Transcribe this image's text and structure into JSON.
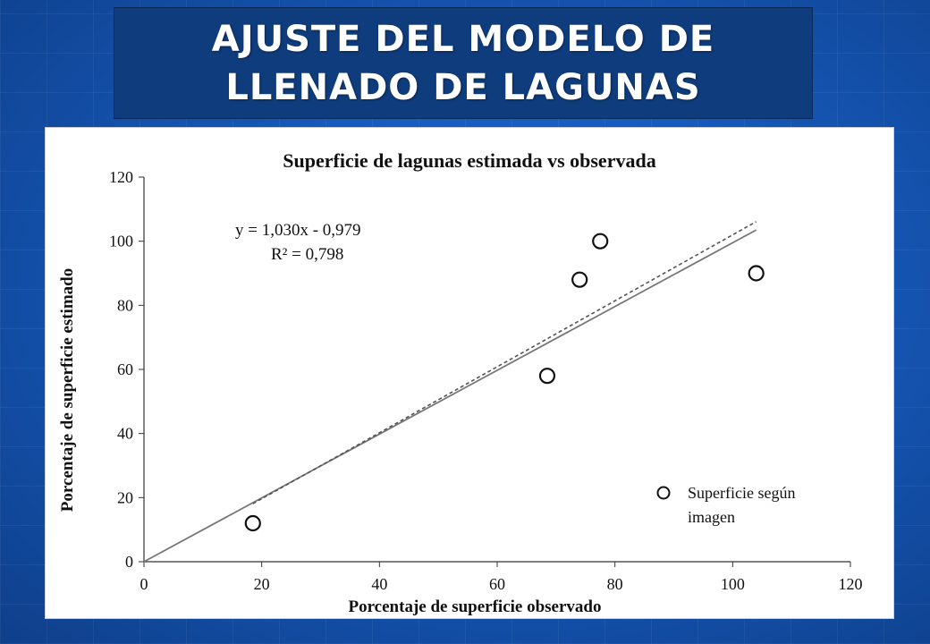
{
  "slide": {
    "title_line1": "AJUSTE DEL MODELO DE",
    "title_line2": "LLENADO DE LAGUNAS"
  },
  "chart_data": {
    "type": "scatter",
    "title": "Superficie de lagunas estimada vs observada",
    "xlabel": "Porcentaje de superficie observado",
    "ylabel": "Porcentaje de superficie estimado",
    "xlim": [
      0,
      120
    ],
    "ylim": [
      0,
      120
    ],
    "xticks": [
      "0",
      "20",
      "40",
      "60",
      "80",
      "100",
      "120"
    ],
    "yticks": [
      "0",
      "20",
      "40",
      "60",
      "80",
      "100",
      "120"
    ],
    "grid": false,
    "legend_position": "bottom-right",
    "series": [
      {
        "name": "Superficie según imagen",
        "marker": "open-circle",
        "x": [
          18.5,
          68.5,
          74,
          77.5,
          104
        ],
        "y": [
          12,
          58,
          88,
          100,
          90
        ]
      }
    ],
    "regression_line": {
      "style": "solid",
      "color": "#777777",
      "x": [
        0,
        104
      ],
      "y": [
        0,
        103.5
      ]
    },
    "trend_line": {
      "style": "dashed",
      "color": "#555555",
      "x": [
        18.5,
        104
      ],
      "y": [
        18.1,
        106.1
      ]
    },
    "equation": "y = 1,030x - 0,979",
    "r_squared": "R² = 0,798"
  },
  "colors": {
    "background": "#1558b8",
    "title_box": "#0f3c7c",
    "title_text": "#ffffff"
  }
}
